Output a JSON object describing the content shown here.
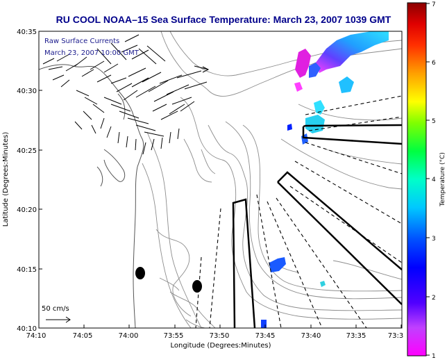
{
  "title": "RU COOL  NOAA–15  Sea Surface Temperature:  March 23, 2007 1039 GMT",
  "annotation": {
    "line1": "Raw Surface Currents",
    "line2": "March 23, 2007 10:00 GMT"
  },
  "scale_arrow": {
    "label": "50 cm/s"
  },
  "axes": {
    "xlabel": "Longitude (Degrees:Minutes)",
    "ylabel": "Latitude (Degrees:Minutes)",
    "x_ticks": [
      "74:10",
      "74:05",
      "74:00",
      "73:55",
      "73:50",
      "73:45",
      "73:40",
      "73:35",
      "73:3"
    ],
    "y_ticks": [
      "40:35",
      "40:30",
      "40:25",
      "40:20",
      "40:15",
      "40:10"
    ]
  },
  "colorbar": {
    "label": "Temperature (°C)",
    "ticks": [
      "7",
      "6",
      "5",
      "4",
      "3",
      "2",
      "1"
    ],
    "min": 1,
    "max": 7
  },
  "colors": {
    "title": "#00008b",
    "annotation": "#1a1a8c",
    "contour": "#888888",
    "land_frame": "#000000"
  }
}
